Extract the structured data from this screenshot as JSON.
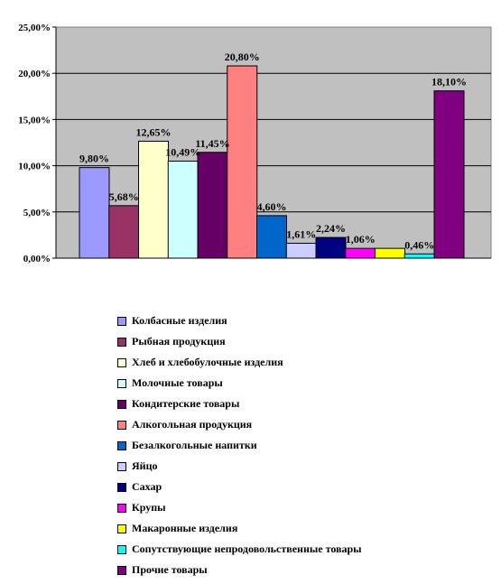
{
  "chart_data": {
    "type": "bar",
    "title": "",
    "xlabel": "",
    "ylabel": "",
    "ylim": [
      0,
      25
    ],
    "y_ticks": [
      "0,00%",
      "5,00%",
      "10,00%",
      "15,00%",
      "20,00%",
      "25,00%"
    ],
    "grid": true,
    "plot_background": "#c0c0c0",
    "legend_position": "bottom",
    "series": [
      {
        "name": "Колбасные изделия",
        "value": 9.8,
        "label": "9,80%",
        "color": "#9999ff"
      },
      {
        "name": "Рыбная продукция",
        "value": 5.68,
        "label": "5,68%",
        "color": "#993366"
      },
      {
        "name": "Хлеб и хлебобулочные изделия",
        "value": 12.65,
        "label": "12,65%",
        "color": "#ffffcc"
      },
      {
        "name": "Молочные товары",
        "value": 10.49,
        "label": "10,49%",
        "color": "#ccffff"
      },
      {
        "name": "Кондитерские товары",
        "value": 11.45,
        "label": "11,45%",
        "color": "#660066"
      },
      {
        "name": "Алкогольная продукция",
        "value": 20.8,
        "label": "20,80%",
        "color": "#ff8080"
      },
      {
        "name": "Безалкогольные напитки",
        "value": 4.6,
        "label": "4,60%",
        "color": "#0066cc"
      },
      {
        "name": "Яйцо",
        "value": 1.61,
        "label": "1,61%",
        "color": "#ccccff"
      },
      {
        "name": "Сахар",
        "value": 2.24,
        "label": "2,24%",
        "color": "#000080"
      },
      {
        "name": "Крупы",
        "value": 1.06,
        "label": "1,06%",
        "color": "#ff00ff"
      },
      {
        "name": "Макаронные изделия",
        "value": 1.06,
        "label": "",
        "color": "#ffff00"
      },
      {
        "name": "Сопутствующие непродовольственные товары",
        "value": 0.46,
        "label": "0,46%",
        "color": "#00ffff"
      },
      {
        "name": "Прочие товары",
        "value": 18.1,
        "label": "18,10%",
        "color": "#800080"
      }
    ]
  }
}
